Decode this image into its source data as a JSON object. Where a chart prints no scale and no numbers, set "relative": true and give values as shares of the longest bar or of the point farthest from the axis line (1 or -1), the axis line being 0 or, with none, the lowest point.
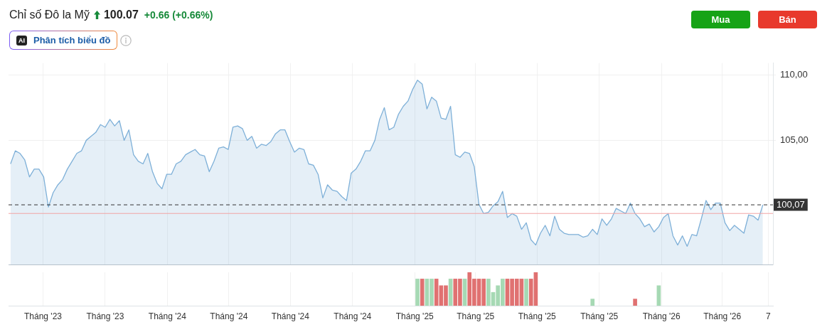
{
  "chart_data": [
    {
      "type": "area",
      "title": "Chỉ số Đô la Mỹ",
      "annotations": [
        "100.07",
        "+0.66 (+0.66%)",
        "AI",
        "Phân tích biểu đồ",
        "Mua",
        "Bán"
      ],
      "x": [
        "2023-05-14",
        "2023-05-21",
        "2023-05-28",
        "2023-06-04",
        "2023-06-11",
        "2023-06-18",
        "2023-06-25",
        "2023-07-02",
        "2023-07-09",
        "2023-07-16",
        "2023-07-23",
        "2023-07-30",
        "2023-08-06",
        "2023-08-13",
        "2023-08-20",
        "2023-08-27",
        "2023-09-03",
        "2023-09-10",
        "2023-09-17",
        "2023-09-24",
        "2023-10-01",
        "2023-10-08",
        "2023-10-15",
        "2023-10-22",
        "2023-10-29",
        "2023-11-05",
        "2023-11-12",
        "2023-11-19",
        "2023-11-26",
        "2023-12-03",
        "2023-12-10",
        "2023-12-17",
        "2023-12-24",
        "2023-12-31",
        "2024-01-07",
        "2024-01-14",
        "2024-01-21",
        "2024-01-28",
        "2024-02-04",
        "2024-02-11",
        "2024-02-18",
        "2024-02-25",
        "2024-03-03",
        "2024-03-10",
        "2024-03-17",
        "2024-03-24",
        "2024-03-31",
        "2024-04-07",
        "2024-04-14",
        "2024-04-21",
        "2024-04-28",
        "2024-05-05",
        "2024-05-12",
        "2024-05-19",
        "2024-05-26",
        "2024-06-02",
        "2024-06-09",
        "2024-06-16",
        "2024-06-23",
        "2024-06-30",
        "2024-07-07",
        "2024-07-14",
        "2024-07-21",
        "2024-07-28",
        "2024-08-04",
        "2024-08-11",
        "2024-08-18",
        "2024-08-25",
        "2024-09-01",
        "2024-09-08",
        "2024-09-15",
        "2024-09-22",
        "2024-09-29",
        "2024-10-06",
        "2024-10-13",
        "2024-10-20",
        "2024-10-27",
        "2024-11-03",
        "2024-11-10",
        "2024-11-17",
        "2024-11-24",
        "2024-12-01",
        "2024-12-08",
        "2024-12-15",
        "2024-12-22",
        "2024-12-29",
        "2025-01-05",
        "2025-01-12",
        "2025-01-19",
        "2025-01-26",
        "2025-02-02",
        "2025-02-09",
        "2025-02-16",
        "2025-02-23",
        "2025-03-02",
        "2025-03-09",
        "2025-03-16",
        "2025-03-23",
        "2025-03-30",
        "2025-04-06",
        "2025-04-13",
        "2025-04-20",
        "2025-04-27",
        "2025-05-04",
        "2025-05-11",
        "2025-05-18",
        "2025-05-25",
        "2025-06-01",
        "2025-06-08",
        "2025-06-15",
        "2025-06-22",
        "2025-06-29",
        "2025-07-06",
        "2025-07-13",
        "2025-07-20",
        "2025-07-27",
        "2025-08-03",
        "2025-08-10",
        "2025-08-17",
        "2025-08-24",
        "2025-08-31",
        "2025-09-07",
        "2025-09-14",
        "2025-09-21",
        "2025-09-28",
        "2025-10-05",
        "2025-10-12",
        "2025-10-19",
        "2025-10-26",
        "2025-11-02",
        "2025-11-09",
        "2025-11-16",
        "2025-11-23",
        "2025-11-30",
        "2025-12-07",
        "2025-12-14",
        "2025-12-21",
        "2025-12-28",
        "2026-01-04",
        "2026-01-11",
        "2026-01-18",
        "2026-01-25",
        "2026-02-01",
        "2026-02-08",
        "2026-02-15",
        "2026-02-22",
        "2026-03-01",
        "2026-03-08",
        "2026-03-15",
        "2026-03-22",
        "2026-03-29",
        "2026-04-05",
        "2026-04-12",
        "2026-04-19",
        "2026-04-26",
        "2026-05-03",
        "2026-05-10",
        "2026-05-17",
        "2026-05-24",
        "2026-05-31"
      ],
      "values": [
        103.2,
        104.2,
        104.0,
        103.5,
        102.2,
        102.8,
        102.8,
        102.2,
        99.9,
        101.0,
        101.6,
        102.0,
        102.8,
        103.4,
        104.0,
        104.2,
        105.0,
        105.3,
        105.6,
        106.2,
        106.0,
        106.6,
        106.1,
        106.5,
        105.0,
        105.8,
        103.9,
        103.4,
        103.2,
        104.0,
        102.6,
        101.7,
        101.3,
        102.4,
        102.4,
        103.2,
        103.4,
        103.9,
        104.1,
        104.3,
        103.9,
        103.8,
        102.6,
        103.4,
        104.4,
        104.5,
        104.3,
        106.0,
        106.1,
        105.9,
        105.0,
        105.3,
        104.4,
        104.7,
        104.6,
        104.9,
        105.5,
        105.8,
        105.8,
        104.9,
        104.1,
        104.4,
        104.3,
        103.2,
        103.1,
        102.4,
        100.6,
        101.6,
        101.2,
        101.1,
        100.7,
        100.4,
        102.5,
        102.8,
        103.4,
        104.2,
        104.2,
        105.0,
        106.6,
        107.5,
        105.8,
        106.0,
        107.0,
        107.6,
        108.0,
        108.9,
        109.6,
        109.3,
        107.4,
        108.3,
        108.0,
        106.7,
        106.6,
        107.6,
        103.9,
        103.7,
        104.1,
        104.0,
        103.0,
        100.1,
        99.4,
        99.5,
        100.0,
        100.3,
        101.1,
        99.1,
        99.4,
        99.2,
        98.2,
        98.7,
        97.4,
        97.0,
        97.9,
        98.5,
        97.7,
        99.2,
        98.2,
        97.9,
        97.8,
        97.8,
        97.8,
        97.6,
        97.7,
        98.2,
        97.8,
        99.0,
        98.5,
        99.0,
        99.8,
        99.6,
        99.4,
        100.2,
        99.4,
        99.0,
        98.4,
        98.6,
        98.0,
        98.4,
        99.1,
        99.4,
        97.7,
        97.0,
        97.7,
        96.9,
        97.8,
        97.7,
        99.0,
        100.4,
        99.7,
        100.2,
        100.2,
        98.7,
        98.1,
        98.5,
        98.2,
        97.9,
        99.3,
        99.2,
        98.9,
        100.07
      ],
      "color": "#7eb0d8",
      "xlim": [
        "2023-05-11",
        "2026-06-15"
      ],
      "xticks": [
        {
          "value": "2023-07-01",
          "label": null
        },
        {
          "value": "2023-10-01",
          "label": null
        },
        {
          "value": "2024-01-01",
          "label": null
        },
        {
          "value": "2024-04-01",
          "label": null
        },
        {
          "value": "2024-07-01",
          "label": null
        },
        {
          "value": "2024-10-01",
          "label": null
        },
        {
          "value": "2025-01-01",
          "label": null
        },
        {
          "value": "2025-04-01",
          "label": null
        },
        {
          "value": "2025-07-01",
          "label": null
        },
        {
          "value": "2025-10-01",
          "label": null
        },
        {
          "value": "2026-01-01",
          "label": null
        },
        {
          "value": "2026-04-01",
          "label": null
        },
        {
          "value": "2026-06-08",
          "label": null
        }
      ],
      "ylim": [
        95.5,
        110.9
      ],
      "yticks": [
        {
          "value": 105,
          "label": "105,00"
        },
        {
          "value": 110,
          "label": "110,00"
        }
      ],
      "tick_labels": "y",
      "grid": true,
      "ref_lines": [
        {
          "axis": "y",
          "value": 100.07,
          "label": "100,07",
          "color": "#333333",
          "line_style": "dashed"
        },
        {
          "axis": "y",
          "value": 99.41,
          "color": "#f2a5a5"
        }
      ]
    },
    {
      "type": "bar",
      "relative": true,
      "x": [
        "2025-01-05",
        "2025-01-12",
        "2025-01-19",
        "2025-01-26",
        "2025-02-02",
        "2025-02-09",
        "2025-02-16",
        "2025-02-23",
        "2025-03-02",
        "2025-03-09",
        "2025-03-16",
        "2025-03-23",
        "2025-03-30",
        "2025-04-06",
        "2025-04-13",
        "2025-04-20",
        "2025-04-27",
        "2025-05-04",
        "2025-05-11",
        "2025-05-18",
        "2025-05-25",
        "2025-06-01",
        "2025-06-08",
        "2025-06-15",
        "2025-06-22",
        "2025-06-29",
        "2025-09-21",
        "2025-11-23",
        "2025-12-28"
      ],
      "values": [
        0.8,
        0.8,
        0.8,
        0.8,
        0.8,
        0.6,
        0.6,
        0.8,
        0.8,
        0.8,
        0.8,
        1,
        0.8,
        0.8,
        0.8,
        0.8,
        0.4,
        0.6,
        0.8,
        0.8,
        0.8,
        0.8,
        0.8,
        0.8,
        0.8,
        1,
        0.2,
        0.2,
        0.6
      ],
      "colors": [
        "#a6d9b4",
        "#e07171",
        "#a6d9b4",
        "#a6d9b4",
        "#e07171",
        "#e07171",
        "#e07171",
        "#a6d9b4",
        "#e07171",
        "#e07171",
        "#a6d9b4",
        "#e07171",
        "#e07171",
        "#e07171",
        "#e07171",
        "#a6d9b4",
        "#a6d9b4",
        "#a6d9b4",
        "#a6d9b4",
        "#e07171",
        "#e07171",
        "#e07171",
        "#e07171",
        "#a6d9b4",
        "#e07171",
        "#e07171",
        "#a6d9b4",
        "#e07171",
        "#a6d9b4"
      ],
      "xlim": [
        "2023-05-11",
        "2026-06-15"
      ],
      "xticks": [
        {
          "value": "2023-07-01",
          "label": "Tháng '23"
        },
        {
          "value": "2023-10-01",
          "label": "Tháng '23"
        },
        {
          "value": "2024-01-01",
          "label": "Tháng '24"
        },
        {
          "value": "2024-04-01",
          "label": "Tháng '24"
        },
        {
          "value": "2024-07-01",
          "label": "Tháng '24"
        },
        {
          "value": "2024-10-01",
          "label": "Tháng '24"
        },
        {
          "value": "2025-01-01",
          "label": "Tháng '25"
        },
        {
          "value": "2025-04-01",
          "label": "Tháng '25"
        },
        {
          "value": "2025-07-01",
          "label": "Tháng '25"
        },
        {
          "value": "2025-10-01",
          "label": "Tháng '25"
        },
        {
          "value": "2026-01-01",
          "label": "Tháng '26"
        },
        {
          "value": "2026-04-01",
          "label": "Tháng '26"
        },
        {
          "value": "2026-06-08",
          "label": "7"
        }
      ],
      "tick_labels": "x",
      "grid": "x"
    }
  ]
}
